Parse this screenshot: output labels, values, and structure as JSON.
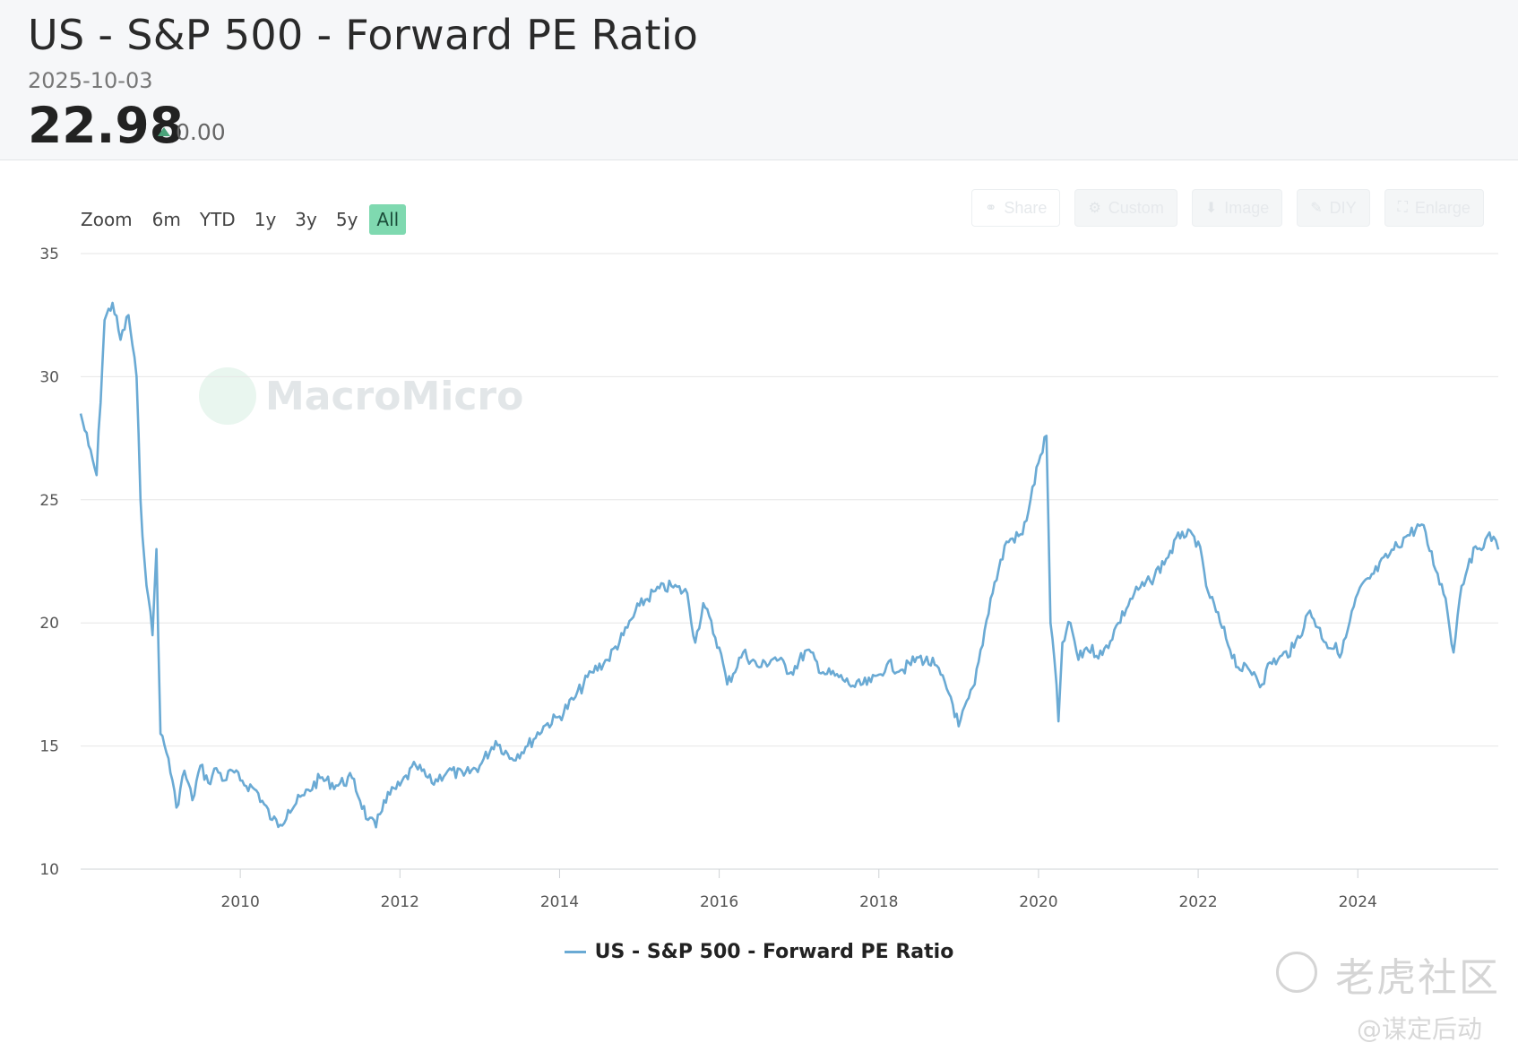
{
  "header": {
    "title": "US - S&P 500 - Forward PE Ratio",
    "date": "2025-10-03",
    "value": "22.98",
    "change": "0.00"
  },
  "zoom": {
    "label": "Zoom",
    "options": [
      "6m",
      "YTD",
      "1y",
      "3y",
      "5y",
      "All"
    ],
    "active": "All"
  },
  "tools": [
    "Share",
    "Custom",
    "Image",
    "DIY",
    "Enlarge"
  ],
  "watermarks": {
    "macromicro": "MacroMicro",
    "tiger": "老虎社区",
    "author": "@谋定后动"
  },
  "colors": {
    "line": "#6aaad4",
    "accent": "#7fd9b0",
    "up": "#4aa37a"
  },
  "chart_data": {
    "type": "line",
    "title": "US - S&P 500 - Forward PE Ratio",
    "xlabel": "",
    "ylabel": "",
    "ylim": [
      10,
      35
    ],
    "yticks": [
      10,
      15,
      20,
      25,
      30,
      35
    ],
    "xlim": [
      2008.0,
      2025.76
    ],
    "xticks": [
      2010,
      2012,
      2014,
      2016,
      2018,
      2020,
      2022,
      2024
    ],
    "grid": true,
    "legend_position": "bottom-center",
    "series": [
      {
        "name": "US - S&P 500 - Forward PE Ratio",
        "x": [
          2008.0,
          2008.1,
          2008.2,
          2008.3,
          2008.4,
          2008.5,
          2008.6,
          2008.7,
          2008.75,
          2008.8,
          2008.85,
          2008.9,
          2008.95,
          2009.0,
          2009.1,
          2009.2,
          2009.3,
          2009.4,
          2009.5,
          2009.6,
          2009.7,
          2009.8,
          2009.9,
          2010.0,
          2010.2,
          2010.4,
          2010.5,
          2010.6,
          2010.8,
          2011.0,
          2011.2,
          2011.4,
          2011.6,
          2011.7,
          2011.8,
          2012.0,
          2012.2,
          2012.4,
          2012.6,
          2012.8,
          2013.0,
          2013.2,
          2013.4,
          2013.6,
          2013.8,
          2014.0,
          2014.2,
          2014.4,
          2014.6,
          2014.8,
          2015.0,
          2015.2,
          2015.4,
          2015.6,
          2015.7,
          2015.8,
          2016.0,
          2016.1,
          2016.3,
          2016.5,
          2016.7,
          2016.9,
          2017.1,
          2017.3,
          2017.5,
          2017.7,
          2017.9,
          2018.0,
          2018.1,
          2018.3,
          2018.5,
          2018.7,
          2018.9,
          2019.0,
          2019.2,
          2019.4,
          2019.6,
          2019.8,
          2019.9,
          2020.0,
          2020.1,
          2020.15,
          2020.2,
          2020.25,
          2020.3,
          2020.4,
          2020.5,
          2020.6,
          2020.8,
          2021.0,
          2021.2,
          2021.4,
          2021.6,
          2021.8,
          2022.0,
          2022.1,
          2022.3,
          2022.5,
          2022.7,
          2022.8,
          2022.9,
          2023.0,
          2023.2,
          2023.4,
          2023.6,
          2023.8,
          2024.0,
          2024.2,
          2024.4,
          2024.6,
          2024.8,
          2025.0,
          2025.1,
          2025.2,
          2025.25,
          2025.3,
          2025.4,
          2025.5,
          2025.6,
          2025.7,
          2025.76
        ],
        "values": [
          28.5,
          27.2,
          26.0,
          32.3,
          33.0,
          31.5,
          32.5,
          30.0,
          25.0,
          22.5,
          21.0,
          19.5,
          23.0,
          15.5,
          14.5,
          12.5,
          14.0,
          12.8,
          14.2,
          13.5,
          14.1,
          13.6,
          14.0,
          13.6,
          13.2,
          12.0,
          11.8,
          12.4,
          13.0,
          13.7,
          13.4,
          13.7,
          12.0,
          11.7,
          12.8,
          13.4,
          14.2,
          13.5,
          14.0,
          13.8,
          14.2,
          15.2,
          14.5,
          15.0,
          15.8,
          16.2,
          17.0,
          18.0,
          18.5,
          19.5,
          20.7,
          21.3,
          21.5,
          21.2,
          19.2,
          20.8,
          19.0,
          17.5,
          18.8,
          18.2,
          18.6,
          18.0,
          18.9,
          18.0,
          17.8,
          17.4,
          17.6,
          17.9,
          18.3,
          18.1,
          18.6,
          18.3,
          17.0,
          15.8,
          17.5,
          21.0,
          23.3,
          23.6,
          25.0,
          26.5,
          27.6,
          20.0,
          18.5,
          16.0,
          19.2,
          20.0,
          18.5,
          19.0,
          18.7,
          20.0,
          21.2,
          21.7,
          22.6,
          23.7,
          23.3,
          21.5,
          19.8,
          18.2,
          18.0,
          17.5,
          18.4,
          18.5,
          19.0,
          20.5,
          19.2,
          18.8,
          21.2,
          22.0,
          22.8,
          23.5,
          24.0,
          22.0,
          21.0,
          18.8,
          20.3,
          21.5,
          22.6,
          23.0,
          23.4,
          23.5,
          22.98
        ]
      }
    ]
  }
}
